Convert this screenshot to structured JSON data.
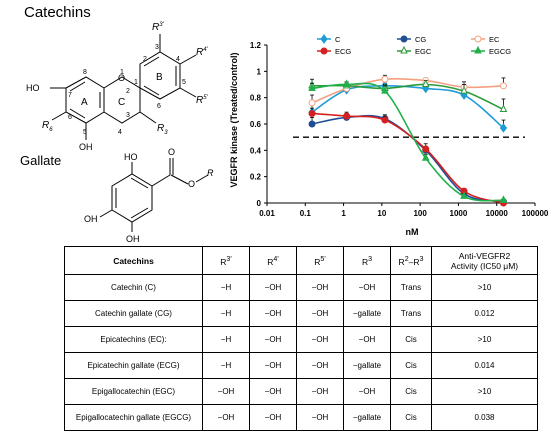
{
  "structures": {
    "catechins_title": "Catechins",
    "gallate_title": "Gallate",
    "core_labels": {
      "R3p": "R",
      "R3p_sup": "3'",
      "R4p": "R",
      "R4p_sup": "4'",
      "R5p": "R",
      "R5p_sup": "5'",
      "R3": "R",
      "R3_sup": "3",
      "R6": "R",
      "R6_sup": "6",
      "HO": "HO",
      "OH": "OH",
      "O": "O",
      "ring_A": "A",
      "ring_B": "B",
      "ring_C": "C",
      "n1": "1",
      "n2": "2",
      "n3": "3",
      "n4": "4",
      "n5": "5",
      "n6": "6",
      "n7": "7",
      "n8": "8",
      "b1": "1",
      "b2": "2",
      "b3": "3",
      "b4": "4",
      "b5": "5",
      "b6": "6"
    },
    "gallate_labels": {
      "O": "O",
      "R": "R",
      "HO": "HO",
      "OH1": "OH",
      "OH2": "OH"
    }
  },
  "chart_data": {
    "type": "line",
    "xlabel": "nM",
    "ylabel": "VEGFR kinase (Treated/control)",
    "x_scale": "log",
    "xlim": [
      0.01,
      100000
    ],
    "ylim": [
      0,
      1.2
    ],
    "x_ticks": [
      "0.01",
      "0.1",
      "1",
      "10",
      "100",
      "1000",
      "10000",
      "100000"
    ],
    "y_ticks": [
      "0",
      "0.2",
      "0.4",
      "0.6",
      "0.8",
      "1",
      "1.2"
    ],
    "reference_line": 0.5,
    "legend_position": "top",
    "x": [
      0.15,
      1.2,
      12,
      140,
      1400,
      15000
    ],
    "series": [
      {
        "name": "C",
        "color": "#1f9bd6",
        "marker": "diamond",
        "values": [
          0.69,
          0.86,
          0.89,
          0.87,
          0.82,
          0.57
        ],
        "errors": [
          0.06,
          0.02,
          0.02,
          0.02,
          0.03,
          0.06
        ]
      },
      {
        "name": "CG",
        "color": "#1f4e96",
        "marker": "circle",
        "values": [
          0.6,
          0.65,
          0.64,
          0.4,
          0.07,
          0.01
        ],
        "errors": [
          0.05,
          0.03,
          0.03,
          0.03,
          0.02,
          0.01
        ]
      },
      {
        "name": "EC",
        "color": "#f4a080",
        "marker": "circle-open",
        "values": [
          0.76,
          0.87,
          0.94,
          0.93,
          0.88,
          0.89
        ],
        "errors": [
          0.06,
          0.04,
          0.03,
          0.02,
          0.04,
          0.06
        ]
      },
      {
        "name": "ECG",
        "color": "#d62020",
        "marker": "circle",
        "values": [
          0.68,
          0.66,
          0.63,
          0.41,
          0.09,
          0.0
        ],
        "errors": [
          0.04,
          0.03,
          0.03,
          0.04,
          0.02,
          0.01
        ]
      },
      {
        "name": "EGC",
        "color": "#2a9b3a",
        "marker": "triangle-open",
        "values": [
          0.89,
          0.89,
          0.87,
          0.9,
          0.85,
          0.71
        ],
        "errors": [
          0.05,
          0.02,
          0.03,
          0.03,
          0.05,
          0.08
        ]
      },
      {
        "name": "EGCG",
        "color": "#21b04b",
        "marker": "triangle",
        "values": [
          0.87,
          0.9,
          0.85,
          0.34,
          0.05,
          0.02
        ],
        "errors": [
          0.04,
          0.02,
          0.04,
          0.03,
          0.02,
          0.01
        ]
      }
    ]
  },
  "table": {
    "headers": [
      "Catechins",
      "R3'",
      "R4'",
      "R5'",
      "R3",
      "R2–R3",
      "Anti-VEGFR2 Activity (IC50 μM)"
    ],
    "header_parts": {
      "r3p": {
        "base": "R",
        "sup": "3'"
      },
      "r4p": {
        "base": "R",
        "sup": "4'"
      },
      "r5p": {
        "base": "R",
        "sup": "5'"
      },
      "r3": {
        "base": "R",
        "sup": "3"
      },
      "r2r3": {
        "a": "R",
        "a_sup": "2",
        "dash": "–",
        "b": "R",
        "b_sup": "3"
      },
      "activity_line1": "Anti-VEGFR2",
      "activity_line2": "Activity (IC50 μM)"
    },
    "rows": [
      [
        "Catechin (C)",
        "−H",
        "−OH",
        "−OH",
        "−OH",
        "Trans",
        ">10"
      ],
      [
        "Catechin gallate (CG)",
        "−H",
        "−OH",
        "−OH",
        "−gallate",
        "Trans",
        "0.012"
      ],
      [
        "Epicatechins (EC):",
        "−H",
        "−OH",
        "−OH",
        "−OH",
        "Cis",
        ">10"
      ],
      [
        "Epicatechin gallate (ECG)",
        "−H",
        "−OH",
        "−OH",
        "−gallate",
        "Cis",
        "0.014"
      ],
      [
        "Epigallocatechin (EGC)",
        "−OH",
        "−OH",
        "−OH",
        "−OH",
        "Cis",
        ">10"
      ],
      [
        "Epigallocatechin gallate (EGCG)",
        "−OH",
        "−OH",
        "−OH",
        "−gallate",
        "Cis",
        "0.038"
      ]
    ]
  }
}
